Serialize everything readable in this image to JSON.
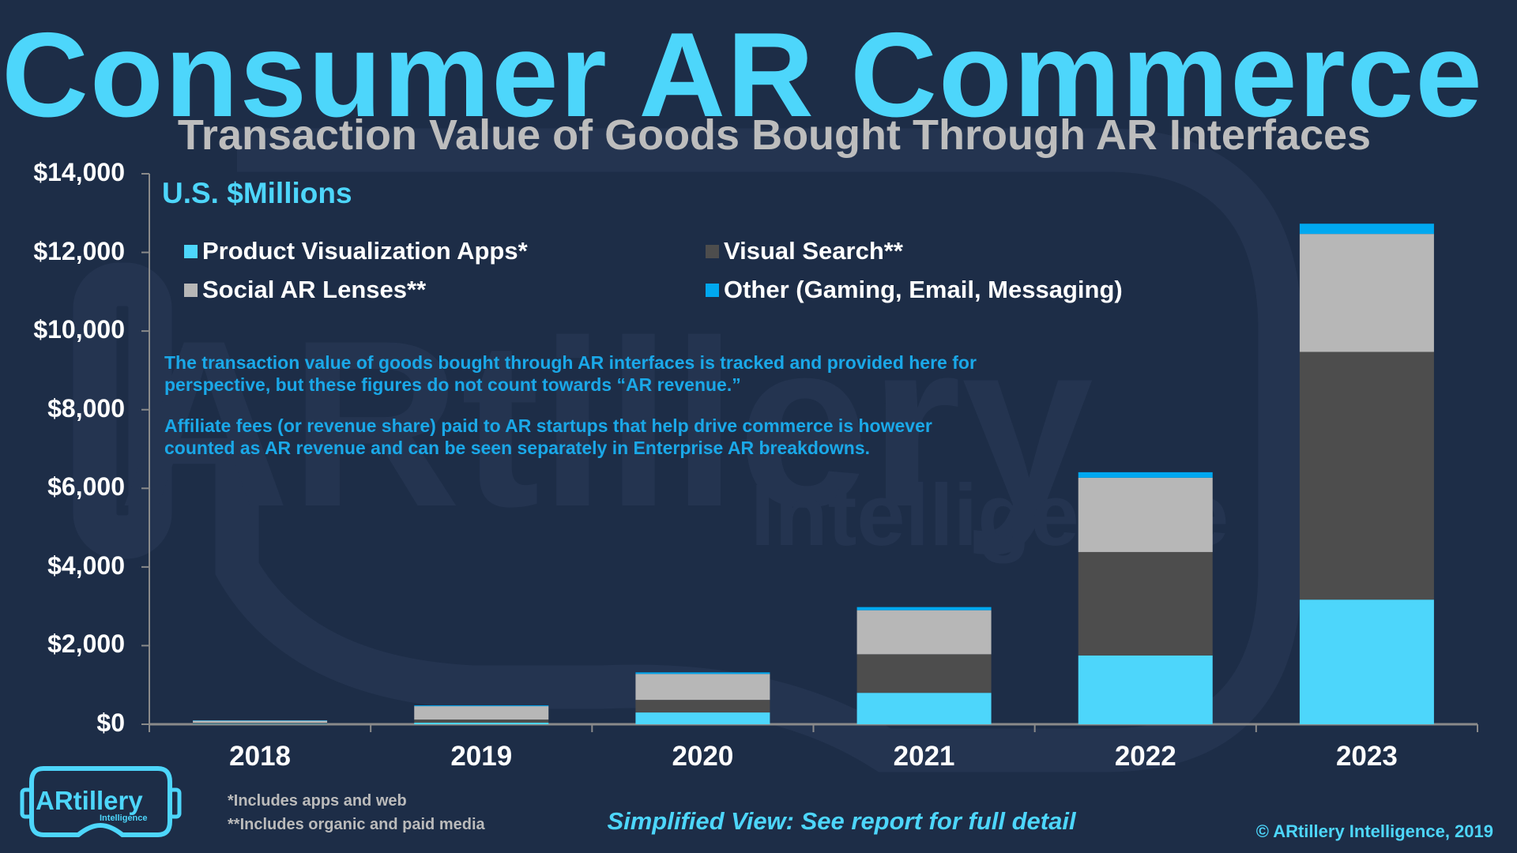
{
  "title": "Consumer AR Commerce",
  "subtitle": "Transaction Value of Goods Bought Through AR Interfaces",
  "units_label": "U.S. $Millions",
  "notes": [
    "The transaction value of goods bought through AR interfaces is tracked and provided here for perspective, but these figures do not count towards “AR revenue.”",
    "Affiliate fees (or revenue share) paid to AR startups that help drive commerce is however counted as AR revenue and can be seen separately in Enterprise AR breakdowns."
  ],
  "footnotes": [
    "*Includes apps and web",
    "**Includes organic and paid media"
  ],
  "simplified_note": "Simplified View: See report for full detail",
  "copyright": "© ARtillery Intelligence, 2019",
  "logo": {
    "name": "ARtillery",
    "sub": "Intelligence"
  },
  "watermark": {
    "name": "ARtillery",
    "sub": "Intelligence"
  },
  "chart_data": {
    "type": "bar",
    "stacked": true,
    "title": "Transaction Value of Goods Bought Through AR Interfaces",
    "ylabel": "U.S. $Millions",
    "xlabel": "",
    "ylim": [
      0,
      14000
    ],
    "yticks": [
      0,
      2000,
      4000,
      6000,
      8000,
      10000,
      12000,
      14000
    ],
    "ytick_labels": [
      "$0",
      "$2,000",
      "$4,000",
      "$6,000",
      "$8,000",
      "$10,000",
      "$12,000",
      "$14,000"
    ],
    "categories": [
      "2018",
      "2019",
      "2020",
      "2021",
      "2022",
      "2023"
    ],
    "legend_position": "top-left",
    "grid": false,
    "series": [
      {
        "name": "Product Visualization Apps*",
        "color": "#4dd6fb",
        "values": [
          10,
          40,
          300,
          800,
          1750,
          3170
        ]
      },
      {
        "name": "Visual Search**",
        "color": "#4d4d4d",
        "values": [
          25,
          80,
          320,
          980,
          2630,
          6300
        ]
      },
      {
        "name": "Social AR Lenses**",
        "color": "#b7b7b7",
        "values": [
          55,
          340,
          660,
          1120,
          1890,
          3000
        ]
      },
      {
        "name": "Other (Gaming, Email, Messaging)",
        "color": "#00a8f0",
        "values": [
          10,
          20,
          40,
          80,
          140,
          260
        ]
      }
    ],
    "legend_order": [
      0,
      1,
      2,
      3
    ]
  }
}
